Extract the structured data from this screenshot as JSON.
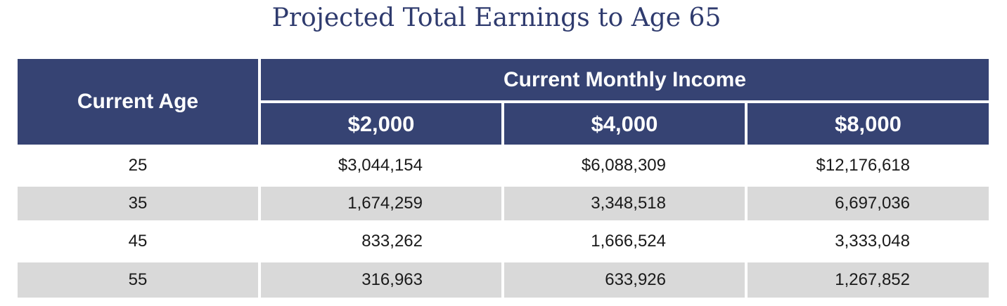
{
  "title": "Projected Total Earnings to Age 65",
  "table": {
    "age_header": "Current Age",
    "group_header": "Current Monthly Income",
    "columns": [
      "$2,000",
      "$4,000",
      "$8,000"
    ],
    "rows": [
      {
        "age": "25",
        "values": [
          "$3,044,154",
          "$6,088,309",
          "$12,176,618"
        ]
      },
      {
        "age": "35",
        "values": [
          "1,674,259",
          "3,348,518",
          "6,697,036"
        ]
      },
      {
        "age": "45",
        "values": [
          "833,262",
          "1,666,524",
          "3,333,048"
        ]
      },
      {
        "age": "55",
        "values": [
          "316,963",
          "633,926",
          "1,267,852"
        ]
      }
    ]
  },
  "colors": {
    "header_bg": "#364373",
    "title_color": "#2f3b6e",
    "stripe_bg": "#d9d9d9"
  }
}
